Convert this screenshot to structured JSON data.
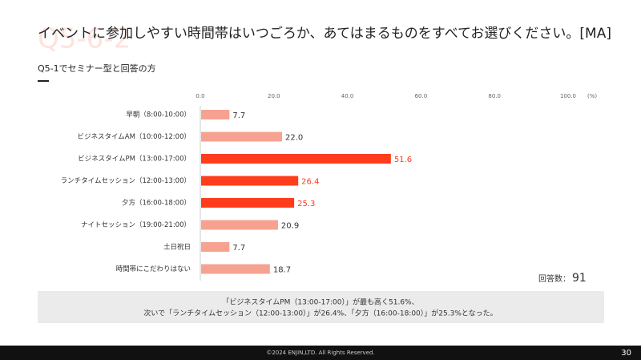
{
  "watermark": "Q5-6-2",
  "title": "イベントに参加しやすい時間帯はいつごろか、あてはまるものをすべてお選びください。[MA]",
  "subtitle": "Q5-1でセミナー型と回答の方",
  "chart_data": {
    "type": "bar",
    "orientation": "horizontal",
    "unit": "(%)",
    "categories": [
      "早朝（8:00-10:00）",
      "ビジネスタイムAM（10:00-12:00）",
      "ビジネスタイムPM（13:00-17:00）",
      "ランチタイムセッション（12:00-13:00）",
      "夕方（16:00-18:00）",
      "ナイトセッション（19:00-21:00）",
      "土日祝日",
      "時間帯にこだわりはない"
    ],
    "values": [
      7.7,
      22.0,
      51.6,
      26.4,
      25.3,
      20.9,
      7.7,
      18.7
    ],
    "value_labels": [
      "7.7",
      "22.0",
      "51.6",
      "26.4",
      "25.3",
      "20.9",
      "7.7",
      "18.7"
    ],
    "colors": [
      "#f7a291",
      "#f7a291",
      "#ff3c1c",
      "#ff3c1c",
      "#ff3c1c",
      "#f7a291",
      "#f7a291",
      "#f7a291"
    ],
    "label_colors": [
      "#333333",
      "#333333",
      "#ff3c1c",
      "#ff3c1c",
      "#ff3c1c",
      "#333333",
      "#333333",
      "#333333"
    ],
    "xlim": [
      0,
      100
    ],
    "xticks": [
      {
        "value": 0,
        "label": "0.0"
      },
      {
        "value": 20,
        "label": "20.0"
      },
      {
        "value": 40,
        "label": "40.0"
      },
      {
        "value": 60,
        "label": "60.0"
      },
      {
        "value": 80,
        "label": "80.0"
      },
      {
        "value": 100,
        "label": "100.0"
      }
    ]
  },
  "respondents": {
    "label": "回答数：",
    "n": 91
  },
  "note": [
    "「ビジネスタイムPM（13:00-17:00）」が最も高く51.6%、",
    "次いで「ランチタイムセッション（12:00-13:00）」が26.4%、「夕方（16:00-18:00）」が25.3%となった。"
  ],
  "footer": "©2024 ENJIN,LTD. All Rights Reserved.",
  "page": "30"
}
